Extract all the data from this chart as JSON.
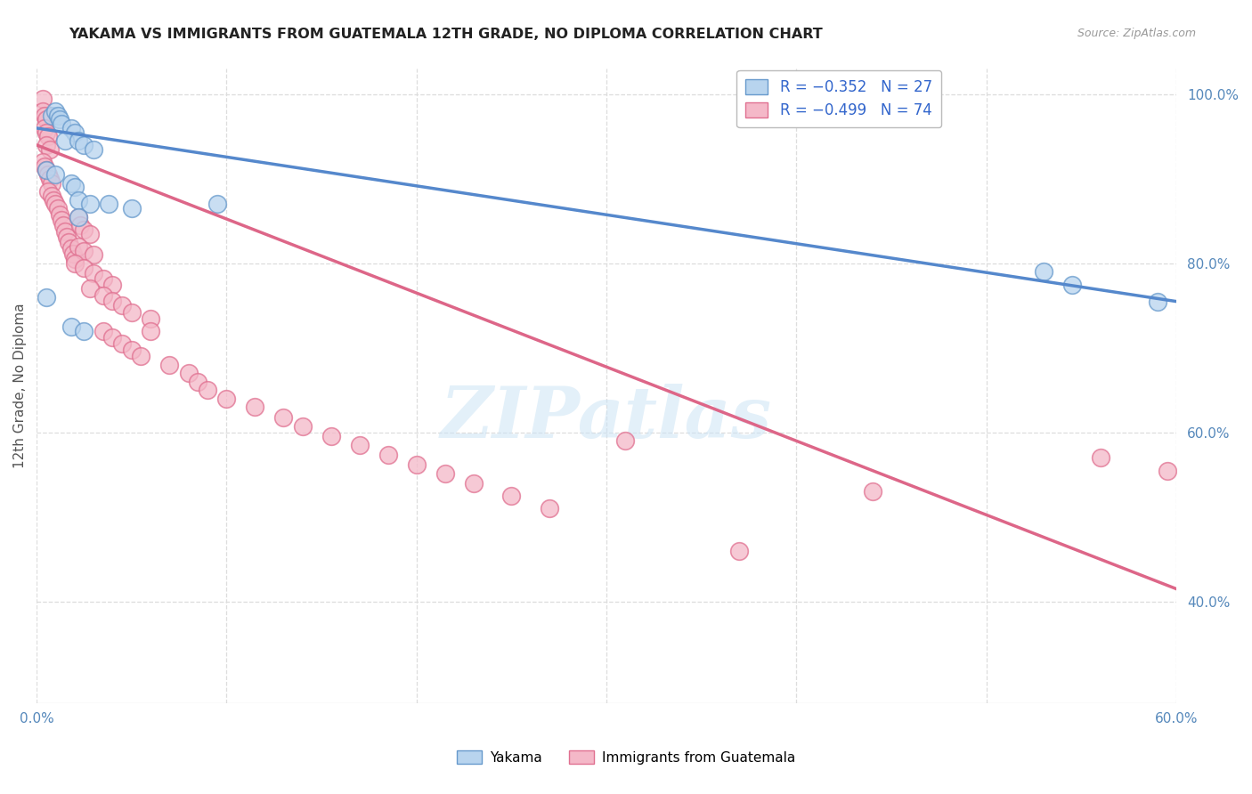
{
  "title": "YAKAMA VS IMMIGRANTS FROM GUATEMALA 12TH GRADE, NO DIPLOMA CORRELATION CHART",
  "source": "Source: ZipAtlas.com",
  "ylabel": "12th Grade, No Diploma",
  "legend_label_blue": "Yakama",
  "legend_label_pink": "Immigrants from Guatemala",
  "watermark": "ZIPatlas",
  "blue_color": "#b8d4ee",
  "pink_color": "#f4b8c8",
  "blue_edge_color": "#6699cc",
  "pink_edge_color": "#e07090",
  "blue_line_color": "#5588cc",
  "pink_line_color": "#dd6688",
  "blue_scatter": [
    [
      0.008,
      0.975
    ],
    [
      0.01,
      0.98
    ],
    [
      0.011,
      0.975
    ],
    [
      0.012,
      0.97
    ],
    [
      0.013,
      0.965
    ],
    [
      0.018,
      0.96
    ],
    [
      0.02,
      0.955
    ],
    [
      0.015,
      0.945
    ],
    [
      0.022,
      0.945
    ],
    [
      0.025,
      0.94
    ],
    [
      0.03,
      0.935
    ],
    [
      0.005,
      0.91
    ],
    [
      0.01,
      0.905
    ],
    [
      0.018,
      0.895
    ],
    [
      0.02,
      0.89
    ],
    [
      0.022,
      0.875
    ],
    [
      0.028,
      0.87
    ],
    [
      0.038,
      0.87
    ],
    [
      0.05,
      0.865
    ],
    [
      0.022,
      0.855
    ],
    [
      0.005,
      0.76
    ],
    [
      0.018,
      0.725
    ],
    [
      0.025,
      0.72
    ],
    [
      0.095,
      0.87
    ],
    [
      0.53,
      0.79
    ],
    [
      0.545,
      0.775
    ],
    [
      0.59,
      0.755
    ]
  ],
  "pink_scatter": [
    [
      0.003,
      0.995
    ],
    [
      0.003,
      0.98
    ],
    [
      0.004,
      0.975
    ],
    [
      0.005,
      0.97
    ],
    [
      0.004,
      0.96
    ],
    [
      0.005,
      0.955
    ],
    [
      0.006,
      0.95
    ],
    [
      0.005,
      0.94
    ],
    [
      0.007,
      0.935
    ],
    [
      0.003,
      0.92
    ],
    [
      0.004,
      0.915
    ],
    [
      0.005,
      0.91
    ],
    [
      0.006,
      0.905
    ],
    [
      0.007,
      0.9
    ],
    [
      0.008,
      0.895
    ],
    [
      0.006,
      0.885
    ],
    [
      0.008,
      0.88
    ],
    [
      0.009,
      0.875
    ],
    [
      0.01,
      0.87
    ],
    [
      0.011,
      0.865
    ],
    [
      0.012,
      0.858
    ],
    [
      0.013,
      0.852
    ],
    [
      0.014,
      0.845
    ],
    [
      0.015,
      0.838
    ],
    [
      0.016,
      0.832
    ],
    [
      0.017,
      0.825
    ],
    [
      0.018,
      0.818
    ],
    [
      0.019,
      0.812
    ],
    [
      0.02,
      0.805
    ],
    [
      0.022,
      0.855
    ],
    [
      0.023,
      0.845
    ],
    [
      0.025,
      0.84
    ],
    [
      0.028,
      0.835
    ],
    [
      0.022,
      0.82
    ],
    [
      0.025,
      0.815
    ],
    [
      0.03,
      0.81
    ],
    [
      0.02,
      0.8
    ],
    [
      0.025,
      0.795
    ],
    [
      0.03,
      0.788
    ],
    [
      0.035,
      0.782
    ],
    [
      0.04,
      0.775
    ],
    [
      0.028,
      0.77
    ],
    [
      0.035,
      0.762
    ],
    [
      0.04,
      0.756
    ],
    [
      0.045,
      0.75
    ],
    [
      0.05,
      0.742
    ],
    [
      0.06,
      0.735
    ],
    [
      0.035,
      0.72
    ],
    [
      0.04,
      0.713
    ],
    [
      0.045,
      0.705
    ],
    [
      0.05,
      0.698
    ],
    [
      0.055,
      0.69
    ],
    [
      0.07,
      0.68
    ],
    [
      0.08,
      0.67
    ],
    [
      0.085,
      0.66
    ],
    [
      0.06,
      0.72
    ],
    [
      0.09,
      0.65
    ],
    [
      0.1,
      0.64
    ],
    [
      0.115,
      0.63
    ],
    [
      0.13,
      0.618
    ],
    [
      0.14,
      0.607
    ],
    [
      0.155,
      0.596
    ],
    [
      0.17,
      0.585
    ],
    [
      0.185,
      0.574
    ],
    [
      0.2,
      0.562
    ],
    [
      0.215,
      0.551
    ],
    [
      0.23,
      0.54
    ],
    [
      0.25,
      0.525
    ],
    [
      0.27,
      0.51
    ],
    [
      0.31,
      0.59
    ],
    [
      0.37,
      0.46
    ],
    [
      0.44,
      0.53
    ],
    [
      0.56,
      0.57
    ],
    [
      0.595,
      0.555
    ]
  ],
  "xlim": [
    0.0,
    0.6
  ],
  "ylim": [
    0.28,
    1.03
  ],
  "blue_trend": [
    0.0,
    0.6,
    0.96,
    0.755
  ],
  "pink_trend": [
    0.0,
    0.6,
    0.94,
    0.415
  ],
  "xtick_positions": [
    0.0,
    0.1,
    0.2,
    0.3,
    0.4,
    0.5,
    0.6
  ],
  "xtick_labels": [
    "0.0%",
    "",
    "",
    "",
    "",
    "",
    "60.0%"
  ],
  "ytick_vals": [
    1.0,
    0.8,
    0.6,
    0.4
  ],
  "ytick_labels": [
    "100.0%",
    "80.0%",
    "60.0%",
    "40.0%"
  ],
  "background_color": "#ffffff",
  "grid_color": "#dddddd",
  "title_color": "#222222",
  "source_color": "#999999",
  "axis_label_color": "#555555",
  "tick_color": "#5588bb",
  "legend_r_color": "#3366cc",
  "legend_box_edge": "#bbbbbb"
}
